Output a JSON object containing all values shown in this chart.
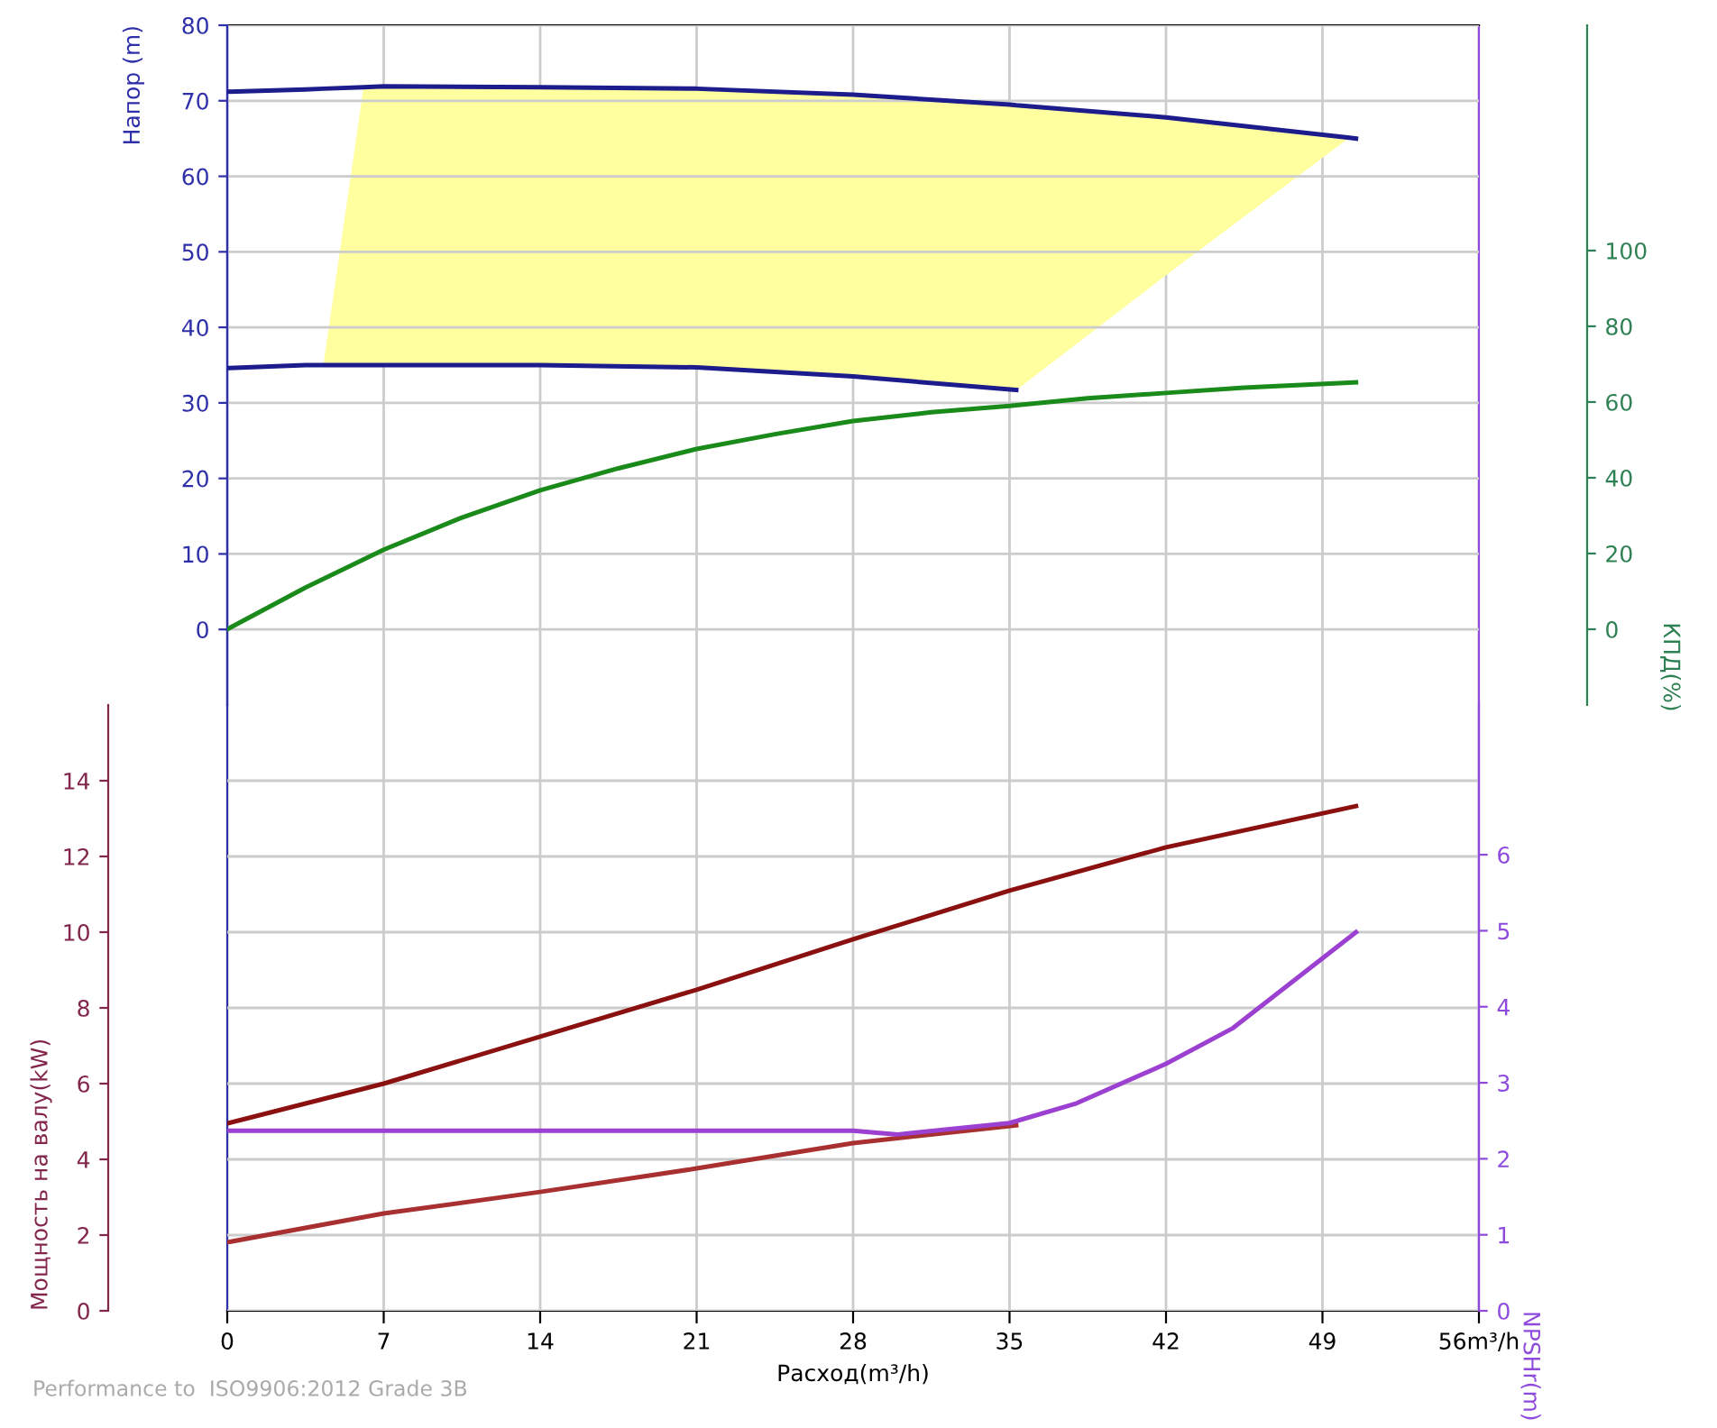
{
  "chart_data": [
    {
      "type": "line",
      "ylabel": "Напор (m)",
      "y2label": "КПД(%)",
      "xlim": [
        0,
        56
      ],
      "xticks": [
        0,
        7,
        14,
        21,
        28,
        35,
        42,
        49,
        56
      ],
      "tick_labels": "y",
      "ylim": [
        -10,
        80
      ],
      "yticks": [
        0,
        10,
        20,
        30,
        40,
        50,
        60,
        70,
        80
      ],
      "y2lim": [
        -20,
        159.5
      ],
      "y2ticks": [
        0,
        20,
        40,
        60,
        80,
        100
      ],
      "grid": true,
      "marker": "none",
      "line_style": "solid",
      "series": [
        {
          "color": "#1c1c8c",
          "x": [
            0,
            3.5,
            4.3,
            6.1,
            7,
            14,
            21,
            28,
            35,
            35.3,
            42,
            50.2,
            50.5
          ],
          "values": [
            71.2,
            71.5,
            71.6,
            71.8,
            71.9,
            71.8,
            71.6,
            70.8,
            69.5,
            69.4,
            67.8,
            65.1,
            65
          ],
          "lower": [
            null,
            null,
            35,
            35,
            35,
            35,
            34.7,
            33.5,
            31.8,
            31.7,
            46.9,
            65.1,
            null
          ],
          "upper": [
            null,
            null,
            35,
            71.8,
            71.9,
            71.8,
            71.6,
            70.8,
            69.5,
            69.4,
            67.8,
            65.1,
            null
          ]
        },
        {
          "color": "#1c1c8c",
          "x": [
            0,
            3.5,
            7,
            14,
            21,
            28,
            35.3
          ],
          "values": [
            34.6,
            35,
            35,
            35,
            34.7,
            33.5,
            31.7
          ]
        },
        {
          "axis": "y2",
          "color": "#1a8a1a",
          "x": [
            0,
            3.5,
            7,
            10.5,
            14,
            17.5,
            21,
            24.5,
            28,
            31.5,
            35,
            38.5,
            42,
            45.5,
            50.5
          ],
          "values": [
            0,
            11,
            21,
            29.5,
            36.7,
            42.5,
            47.6,
            51.5,
            55,
            57.3,
            59,
            61,
            62.4,
            63.8,
            65.2
          ]
        }
      ]
    },
    {
      "type": "line",
      "xlabel": "Расход(m³/h)",
      "ylabel": "Мощность на валу(kW)",
      "y2label": "NPSHr(m)",
      "annotations": [
        "Performance to  ISO9906:2012 Grade 3B"
      ],
      "xlim": [
        0,
        56
      ],
      "xticks": [
        0,
        7,
        14,
        21,
        28,
        35,
        42,
        49,
        {
          "value": 56,
          "label": "56m³/h"
        }
      ],
      "ylim": [
        0,
        16
      ],
      "yticks": [
        0,
        2,
        4,
        6,
        8,
        10,
        12,
        14
      ],
      "y2lim": [
        0,
        7.97
      ],
      "y2ticks": [
        0,
        1,
        2,
        3,
        4,
        5,
        6
      ],
      "grid": true,
      "marker": "none",
      "line_style": "solid",
      "series": [
        {
          "color": "#8b1010",
          "x": [
            0,
            7,
            14,
            21,
            28,
            35,
            42,
            50.5
          ],
          "values": [
            4.95,
            6.0,
            7.24,
            8.48,
            9.81,
            11.1,
            12.24,
            13.33
          ]
        },
        {
          "color": "#a83030",
          "x": [
            0,
            7,
            14,
            21,
            28,
            35.3
          ],
          "values": [
            1.81,
            2.57,
            3.14,
            3.76,
            4.43,
            4.9
          ]
        },
        {
          "axis": "y2",
          "color": "#9b40d0",
          "x": [
            0,
            14,
            28,
            30,
            35,
            38,
            42,
            45,
            50.5
          ],
          "values": [
            2.37,
            2.37,
            2.37,
            2.32,
            2.47,
            2.73,
            3.25,
            3.72,
            4.98
          ]
        }
      ]
    }
  ]
}
